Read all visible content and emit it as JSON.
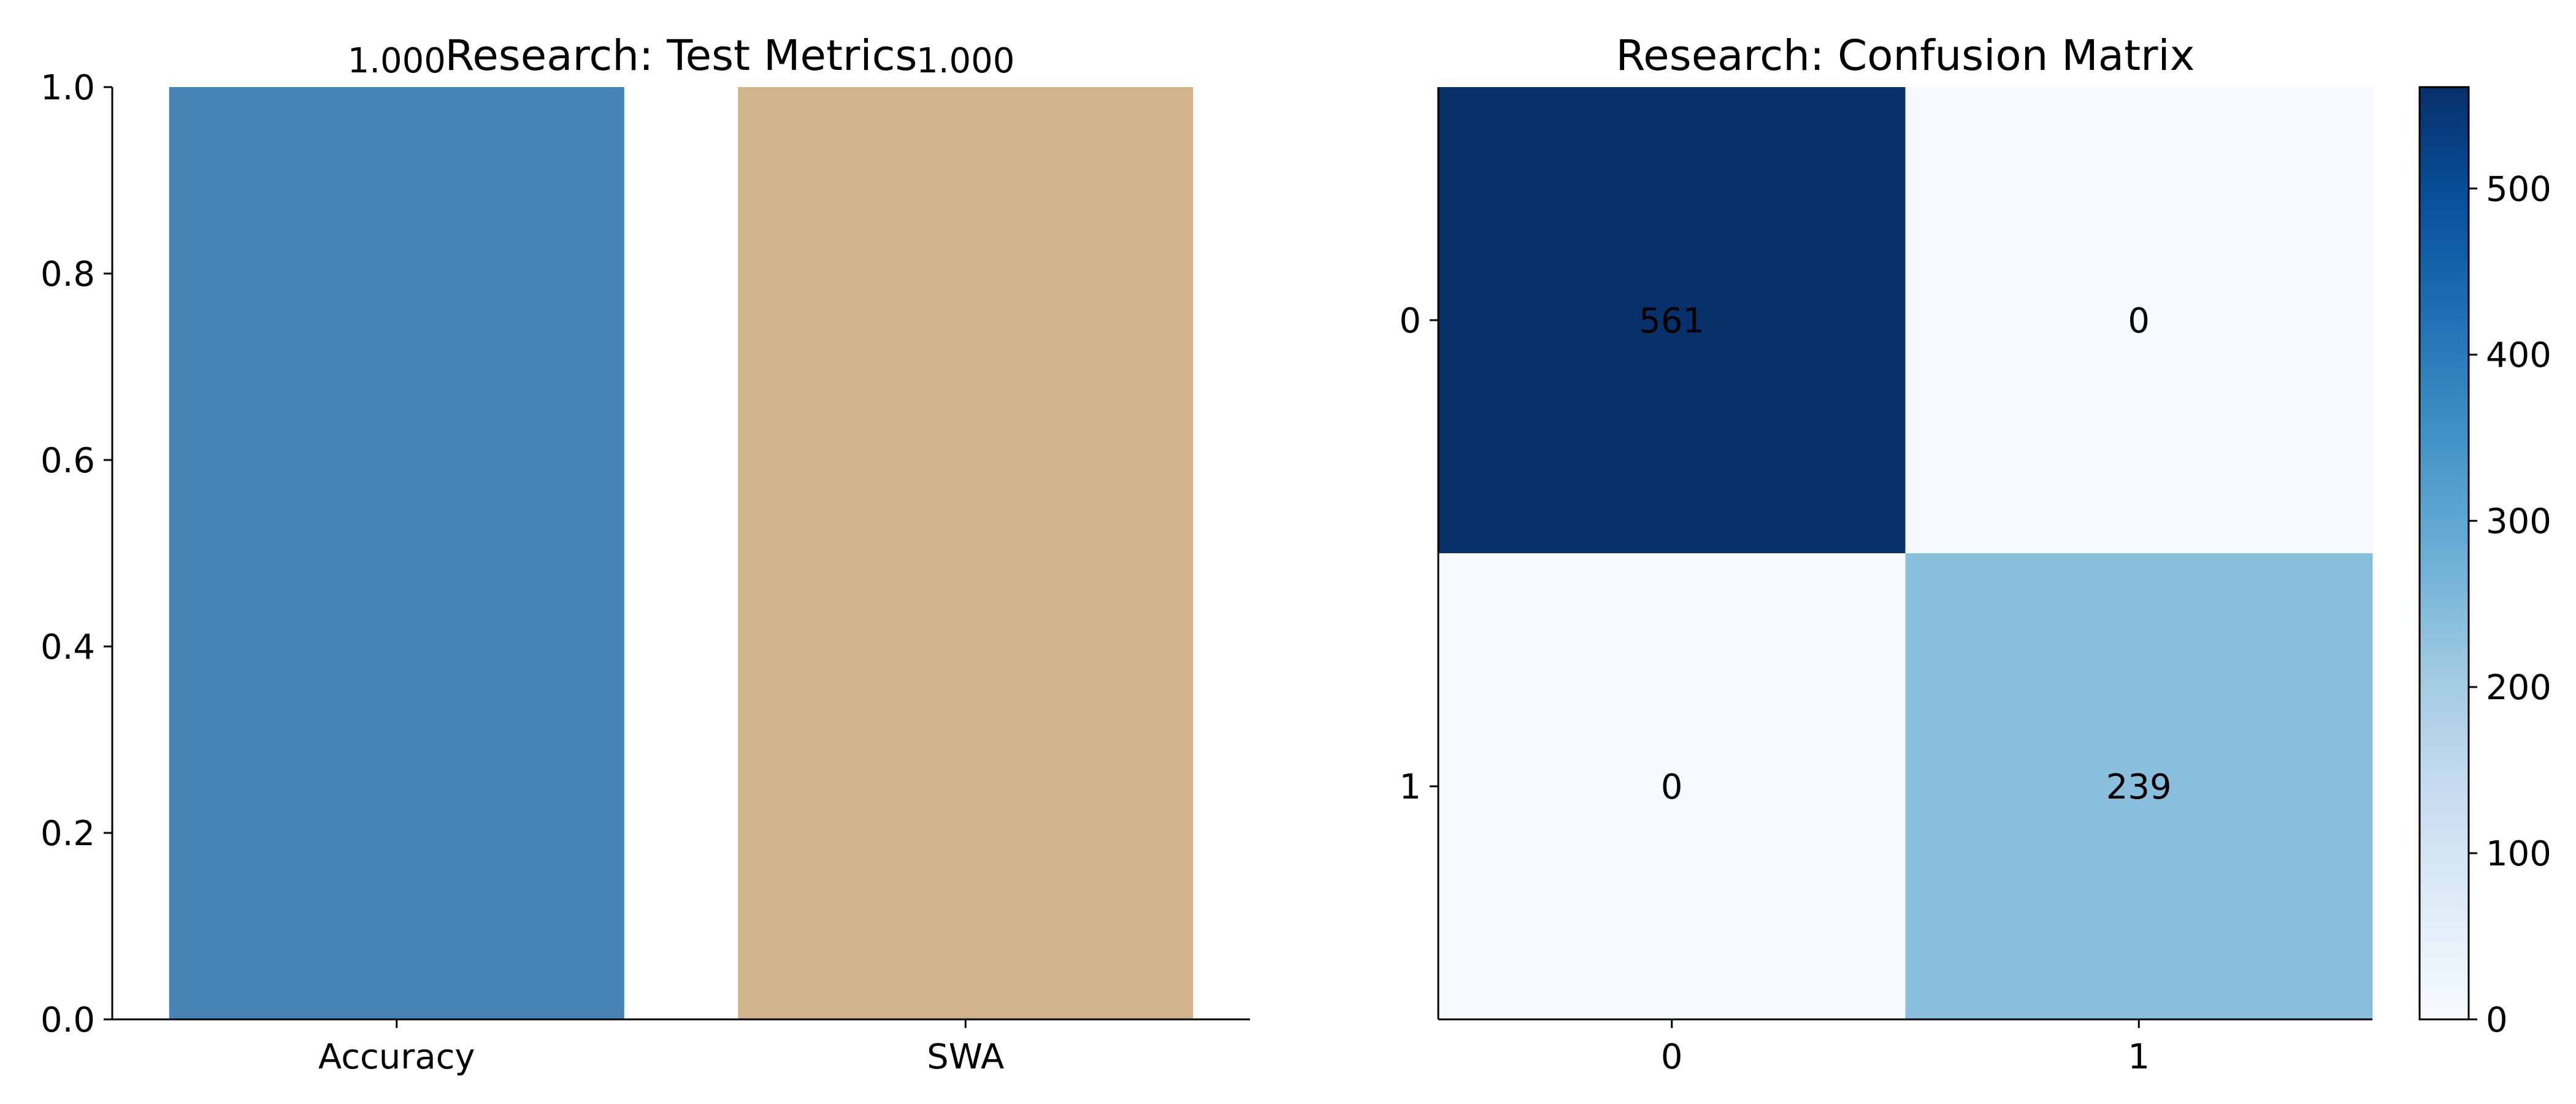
{
  "chart_data": [
    {
      "type": "bar",
      "title": "Research: Test Metrics",
      "categories": [
        "Accuracy",
        "SWA"
      ],
      "values": [
        1.0,
        1.0
      ],
      "value_labels": [
        "1.000",
        "1.000"
      ],
      "bar_colors": [
        "#4682b4",
        "#d2b48c"
      ],
      "xlabel": "",
      "ylabel": "",
      "ylim": [
        0,
        1.0
      ],
      "yticks": [
        0.0,
        0.2,
        0.4,
        0.6,
        0.8,
        1.0
      ],
      "ytick_labels": [
        "0.0",
        "0.2",
        "0.4",
        "0.6",
        "0.8",
        "1.0"
      ],
      "grid": false
    },
    {
      "type": "heatmap",
      "title": "Research: Confusion Matrix",
      "x_categories": [
        "0",
        "1"
      ],
      "y_categories": [
        "0",
        "1"
      ],
      "matrix": [
        [
          561,
          0
        ],
        [
          0,
          239
        ]
      ],
      "cell_labels": [
        [
          "561",
          "0"
        ],
        [
          "0",
          "239"
        ]
      ],
      "colormap": "Blues",
      "color_min": 0,
      "color_max": 561,
      "colorbar_ticks": [
        0,
        100,
        200,
        300,
        400,
        500
      ],
      "colorbar_tick_labels": [
        "0",
        "100",
        "200",
        "300",
        "400",
        "500"
      ],
      "xlabel": "",
      "ylabel": "",
      "grid": false
    }
  ]
}
